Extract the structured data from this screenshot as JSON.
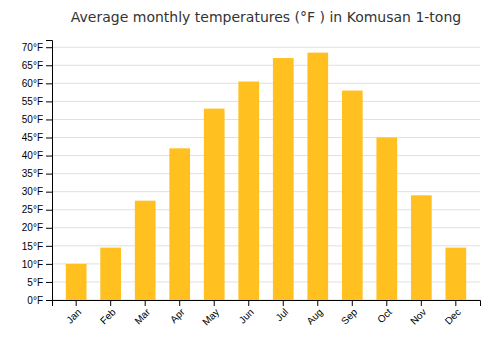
{
  "chart_data": {
    "type": "bar",
    "title": "Average monthly temperatures (°F ) in Komusan 1-tong",
    "categories": [
      "Jan",
      "Feb",
      "Mar",
      "Apr",
      "May",
      "Jun",
      "Jul",
      "Aug",
      "Sep",
      "Oct",
      "Nov",
      "Dec"
    ],
    "values": [
      10,
      14.5,
      27.5,
      42,
      53,
      60.5,
      67,
      68.5,
      58,
      45,
      29,
      14.5
    ],
    "color": "#FFC020",
    "ylim": [
      0,
      72
    ],
    "yticks": [
      {
        "value": 0,
        "label": "0°F"
      },
      {
        "value": 5,
        "label": "5°F"
      },
      {
        "value": 10,
        "label": "10°F"
      },
      {
        "value": 15,
        "label": "15°F"
      },
      {
        "value": 20,
        "label": "20°F"
      },
      {
        "value": 25,
        "label": "25°F"
      },
      {
        "value": 30,
        "label": "30°F"
      },
      {
        "value": 35,
        "label": "35°F"
      },
      {
        "value": 40,
        "label": "40°F"
      },
      {
        "value": 45,
        "label": "45°F"
      },
      {
        "value": 50,
        "label": "50°F"
      },
      {
        "value": 55,
        "label": "55°F"
      },
      {
        "value": 60,
        "label": "60°F"
      },
      {
        "value": 65,
        "label": "65°F"
      },
      {
        "value": 70,
        "label": "70°F"
      }
    ],
    "grid": true
  }
}
